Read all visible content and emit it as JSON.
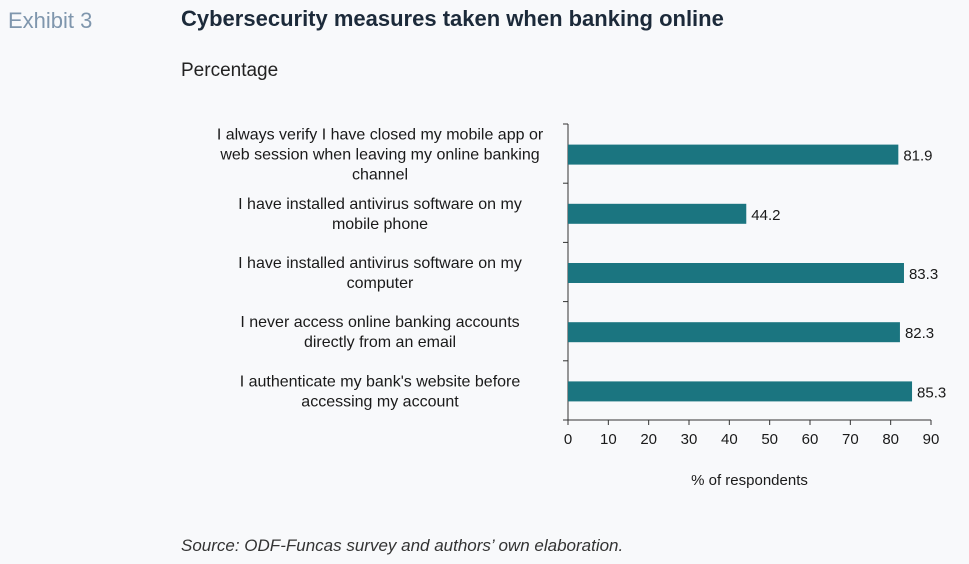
{
  "header": {
    "exhibit_label": "Exhibit 3",
    "title": "Cybersecurity measures taken when banking online",
    "subtitle": "Percentage"
  },
  "footer": {
    "source": "Source: ODF-Funcas survey and authors’ own elaboration."
  },
  "colors": {
    "bar": "#1b7580",
    "axis": "#333333",
    "text": "#1a1a1a"
  },
  "chart_data": {
    "type": "bar",
    "orientation": "horizontal",
    "categories": [
      [
        "I always verify I have closed my mobile app or",
        "web session when leaving my online banking",
        "channel"
      ],
      [
        "I have installed antivirus software on my",
        "mobile phone"
      ],
      [
        "I have installed antivirus software on my",
        "computer"
      ],
      [
        "I never access online banking accounts",
        "directly from an email"
      ],
      [
        "I authenticate my bank's website before",
        "accessing my account"
      ]
    ],
    "values": [
      81.9,
      44.2,
      83.3,
      82.3,
      85.3
    ],
    "value_labels": [
      "81.9",
      "44.2",
      "83.3",
      "82.3",
      "85.3"
    ],
    "xlabel": "% of respondents",
    "xlim": [
      0,
      90
    ],
    "xticks": [
      "0",
      "10",
      "20",
      "30",
      "40",
      "50",
      "60",
      "70",
      "80",
      "90"
    ],
    "grid": false,
    "legend": "none"
  }
}
